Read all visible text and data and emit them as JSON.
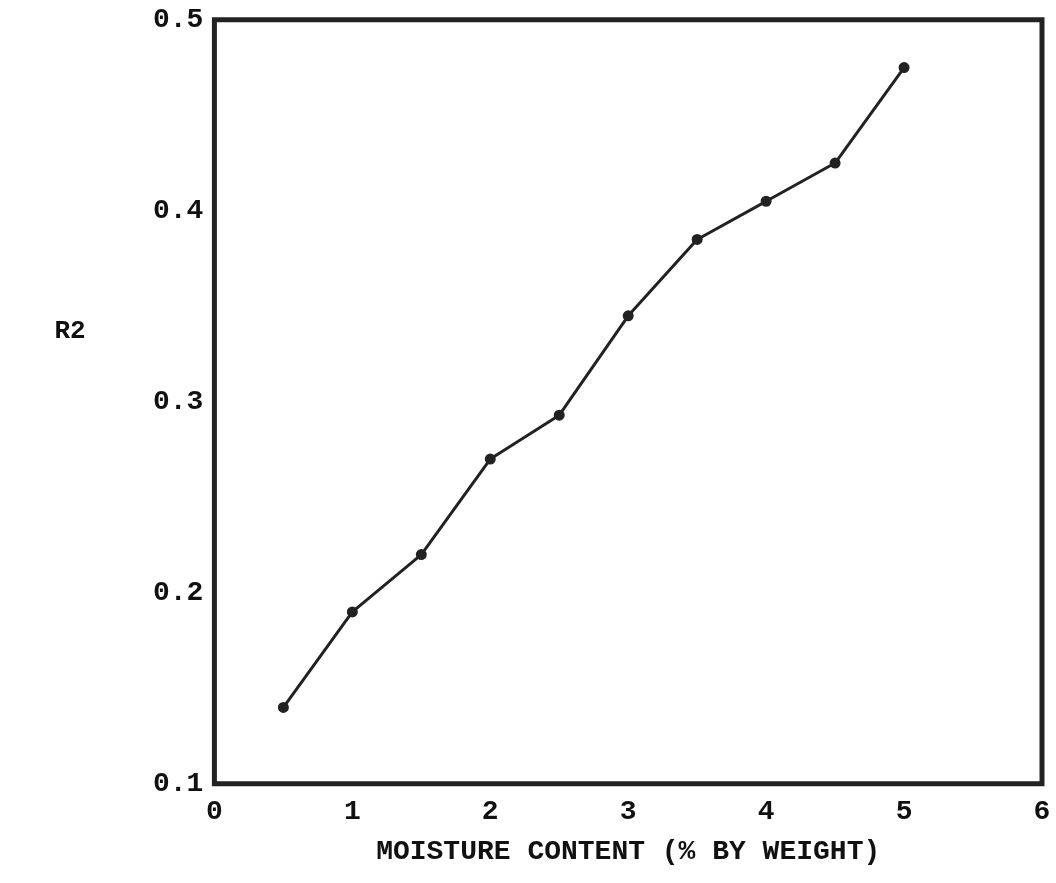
{
  "chart_data": {
    "type": "line",
    "xlabel": "MOISTURE CONTENT (% BY WEIGHT)",
    "ylabel": "R2",
    "x": [
      0.5,
      1,
      1.5,
      2,
      2.5,
      3,
      3.5,
      4,
      4.5,
      5
    ],
    "series": [
      {
        "color": "#222222",
        "values": [
          0.14,
          0.19,
          0.22,
          0.27,
          0.293,
          0.345,
          0.385,
          0.405,
          0.425,
          0.475
        ]
      }
    ],
    "xlim": [
      0,
      6
    ],
    "xticks": [
      0,
      1,
      2,
      3,
      4,
      5,
      6
    ],
    "ylim": [
      0.1,
      0.5
    ],
    "yticks": [
      0.1,
      0.2,
      0.3,
      0.4,
      0.5
    ],
    "grid": false,
    "legend": false,
    "marker": "circle",
    "line_style": "solid"
  }
}
